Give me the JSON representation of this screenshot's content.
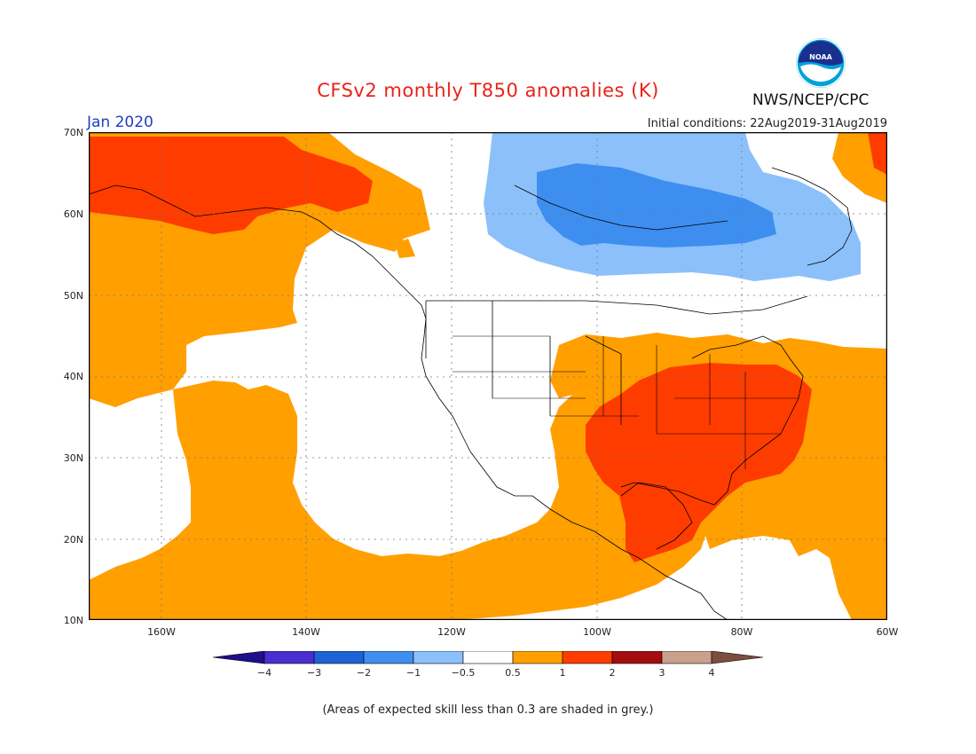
{
  "title": "CFSv2 monthly T850 anomalies (K)",
  "month": "Jan 2020",
  "initial_conditions": "Initial conditions: 22Aug2019-31Aug2019",
  "agency": "NWS/NCEP/CPC",
  "logo_text": "NOAA",
  "lat_labels": [
    "70N",
    "60N",
    "50N",
    "40N",
    "30N",
    "20N",
    "10N"
  ],
  "lon_labels": [
    "160W",
    "140W",
    "120W",
    "100W",
    "80W",
    "60W"
  ],
  "colorbar": {
    "labels": [
      "−4",
      "−3",
      "−2",
      "−1",
      "−0.5",
      "0.5",
      "1",
      "2",
      "3",
      "4"
    ],
    "colors": [
      "#1e0f8c",
      "#4a2fd0",
      "#1e63d6",
      "#3e8ef0",
      "#8cc0fb",
      "#ffffff",
      "#ff9f00",
      "#ff3c00",
      "#a40d0d",
      "#c8a08c",
      "#7b4e3e"
    ]
  },
  "note": "(Areas of expected skill less than 0.3 are shaded in grey.)",
  "colors": {
    "warm1": "#ff9f00",
    "warm2": "#ff3c00",
    "cool1": "#8cc0fb",
    "cool2": "#3e8ef0",
    "title": "#e8231a",
    "month": "#1f3fbf"
  }
}
